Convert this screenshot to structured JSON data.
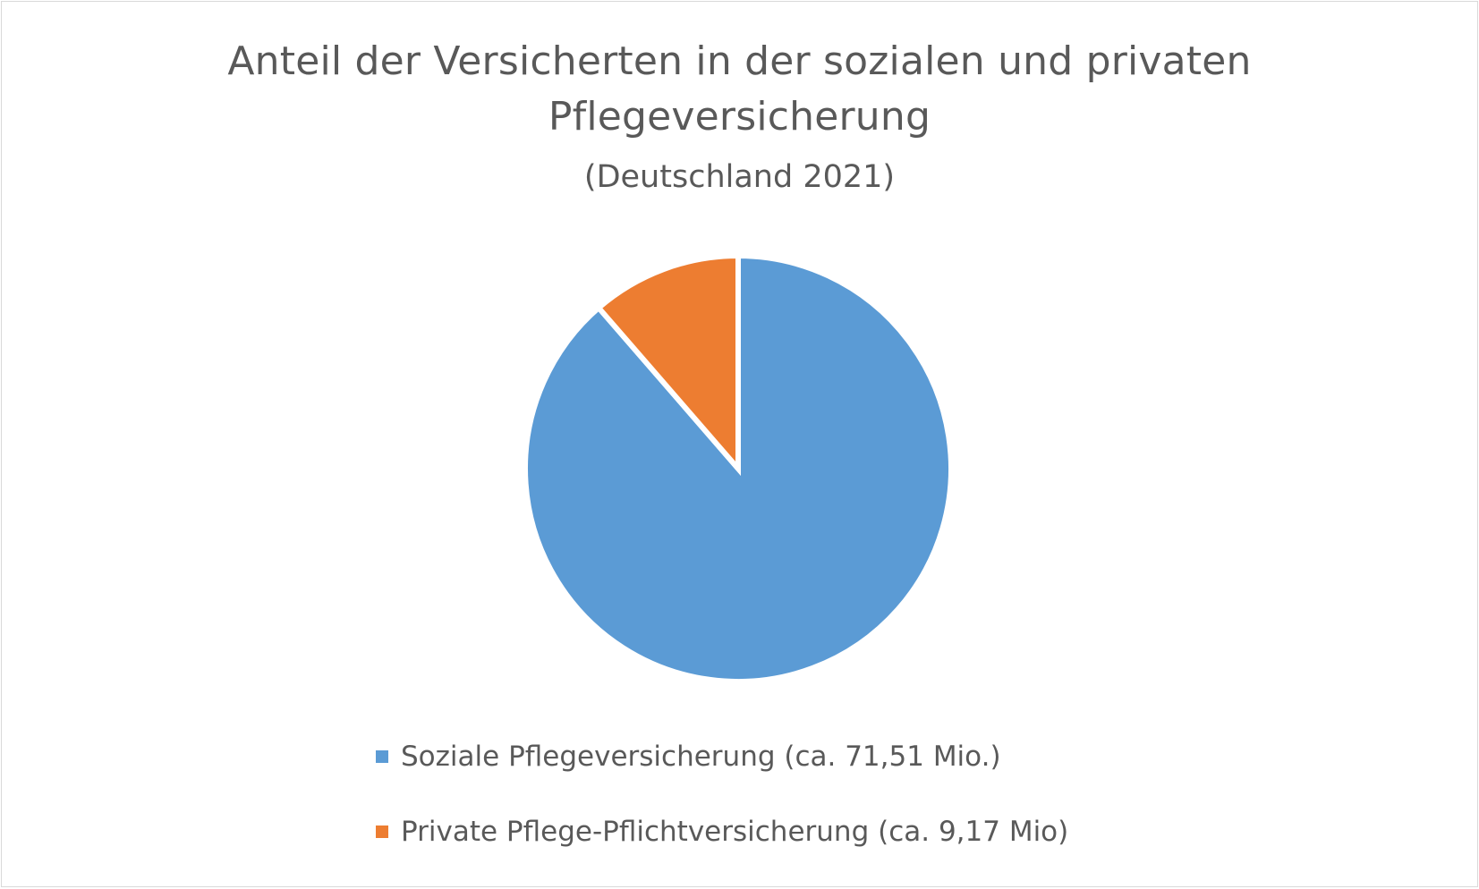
{
  "chart_data": {
    "type": "pie",
    "title": "Anteil der Versicherten in der sozialen und privaten Pflegeversicherung",
    "subtitle": "(Deutschland 2021)",
    "series": [
      {
        "values": [
          71.51,
          9.17
        ]
      }
    ],
    "categories": [
      "Soziale Pflegeversicherung (ca. 71,51 Mio.)",
      "Private Pflege-Pflichtversicherung (ca. 9,17 Mio)"
    ],
    "colors": [
      "#5b9bd5",
      "#ed7d31"
    ],
    "legend_position": "bottom",
    "start_angle": "12 o'clock",
    "direction": "clockwise"
  }
}
